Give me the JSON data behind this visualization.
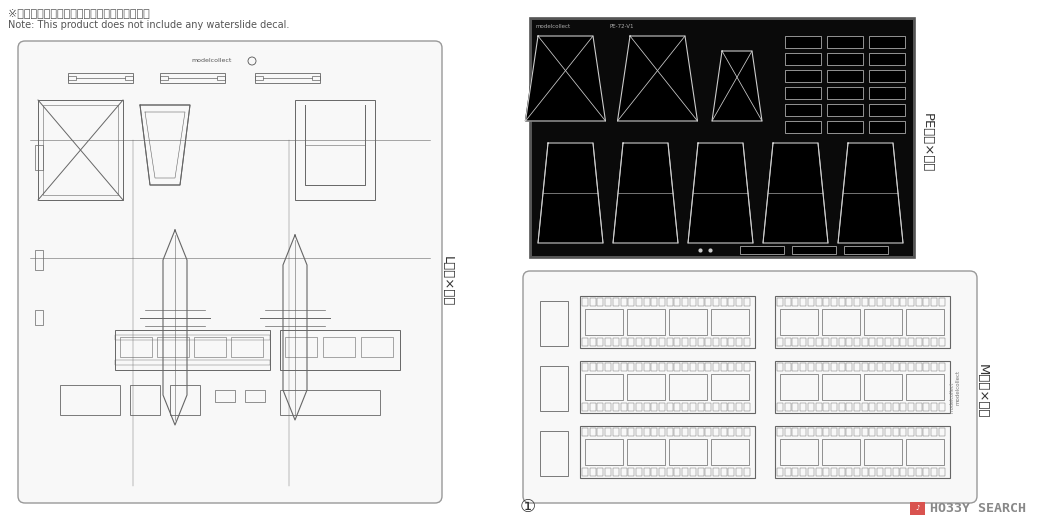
{
  "bg_color": "#ffffff",
  "note_line1": "※本製品にはデカールは含まれておりません。",
  "note_line2": "Note: This product does not include any waterslide decal.",
  "label_L": "L部品×１個",
  "label_PE": "PE部品×１枚",
  "label_M": "M部品×５個",
  "page_num": "①",
  "brand_text": "HO33Y SEARCH",
  "brand_icon_color": "#d9534f",
  "text_color": "#555555",
  "dark_color": "#333333",
  "sprue_border_color": "#999999",
  "sprue_bg": "#f8f8f8",
  "pe_bg": "#0a0a0a",
  "part_line_color": "#666666",
  "pe_line_color": "#cccccc"
}
